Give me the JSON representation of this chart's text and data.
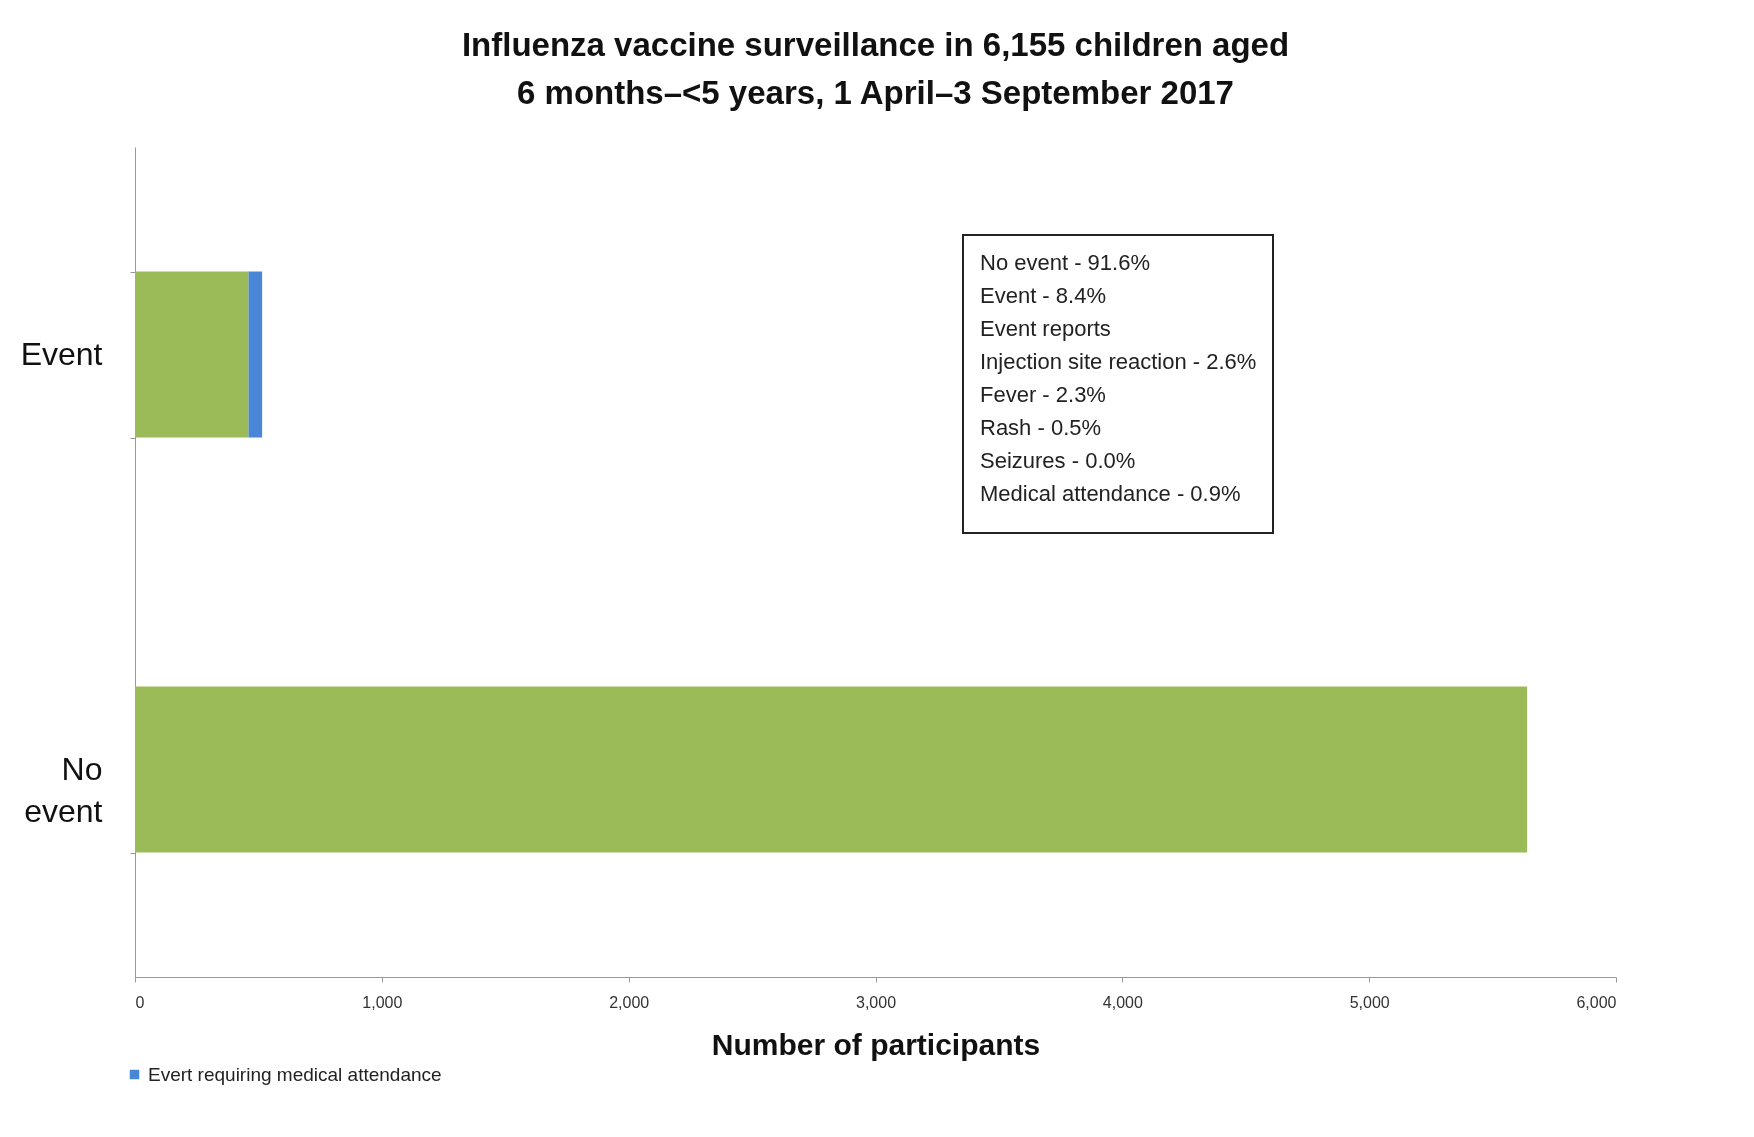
{
  "chart_data": {
    "type": "bar",
    "orientation": "horizontal",
    "stacked": true,
    "title": "Influenza vaccine surveillance in 6,155 children aged\n6 months–<5 years, 1 April–3 September 2017",
    "xlabel": "Number of participants",
    "categories": [
      "Event",
      "No\nevent"
    ],
    "series": [
      {
        "color": "#9bbb59",
        "values": [
          460,
          5640
        ]
      },
      {
        "name": "Evert requiring medical attendance",
        "color": "#4a86d6",
        "values": [
          55,
          null
        ]
      }
    ],
    "xlim": [
      0,
      6000
    ],
    "xticks": [
      0,
      {
        "value": 1000,
        "label": "1,000"
      },
      {
        "value": 2000,
        "label": "2,000"
      },
      {
        "value": 3000,
        "label": "3,000"
      },
      {
        "value": 4000,
        "label": "4,000"
      },
      {
        "value": 5000,
        "label": "5,000"
      },
      {
        "value": 6000,
        "label": "6,000"
      }
    ],
    "grid": false,
    "legend": "bottom left",
    "annotations": [
      "No event - 91.6%",
      "Event - 8.4%",
      "Event reports",
      "Injection  site reaction  - 2.6%",
      "Fever - 2.3%",
      "Rash - 0.5%",
      "Seizures - 0.0%",
      "Medical attendance  - 0.9%"
    ]
  }
}
